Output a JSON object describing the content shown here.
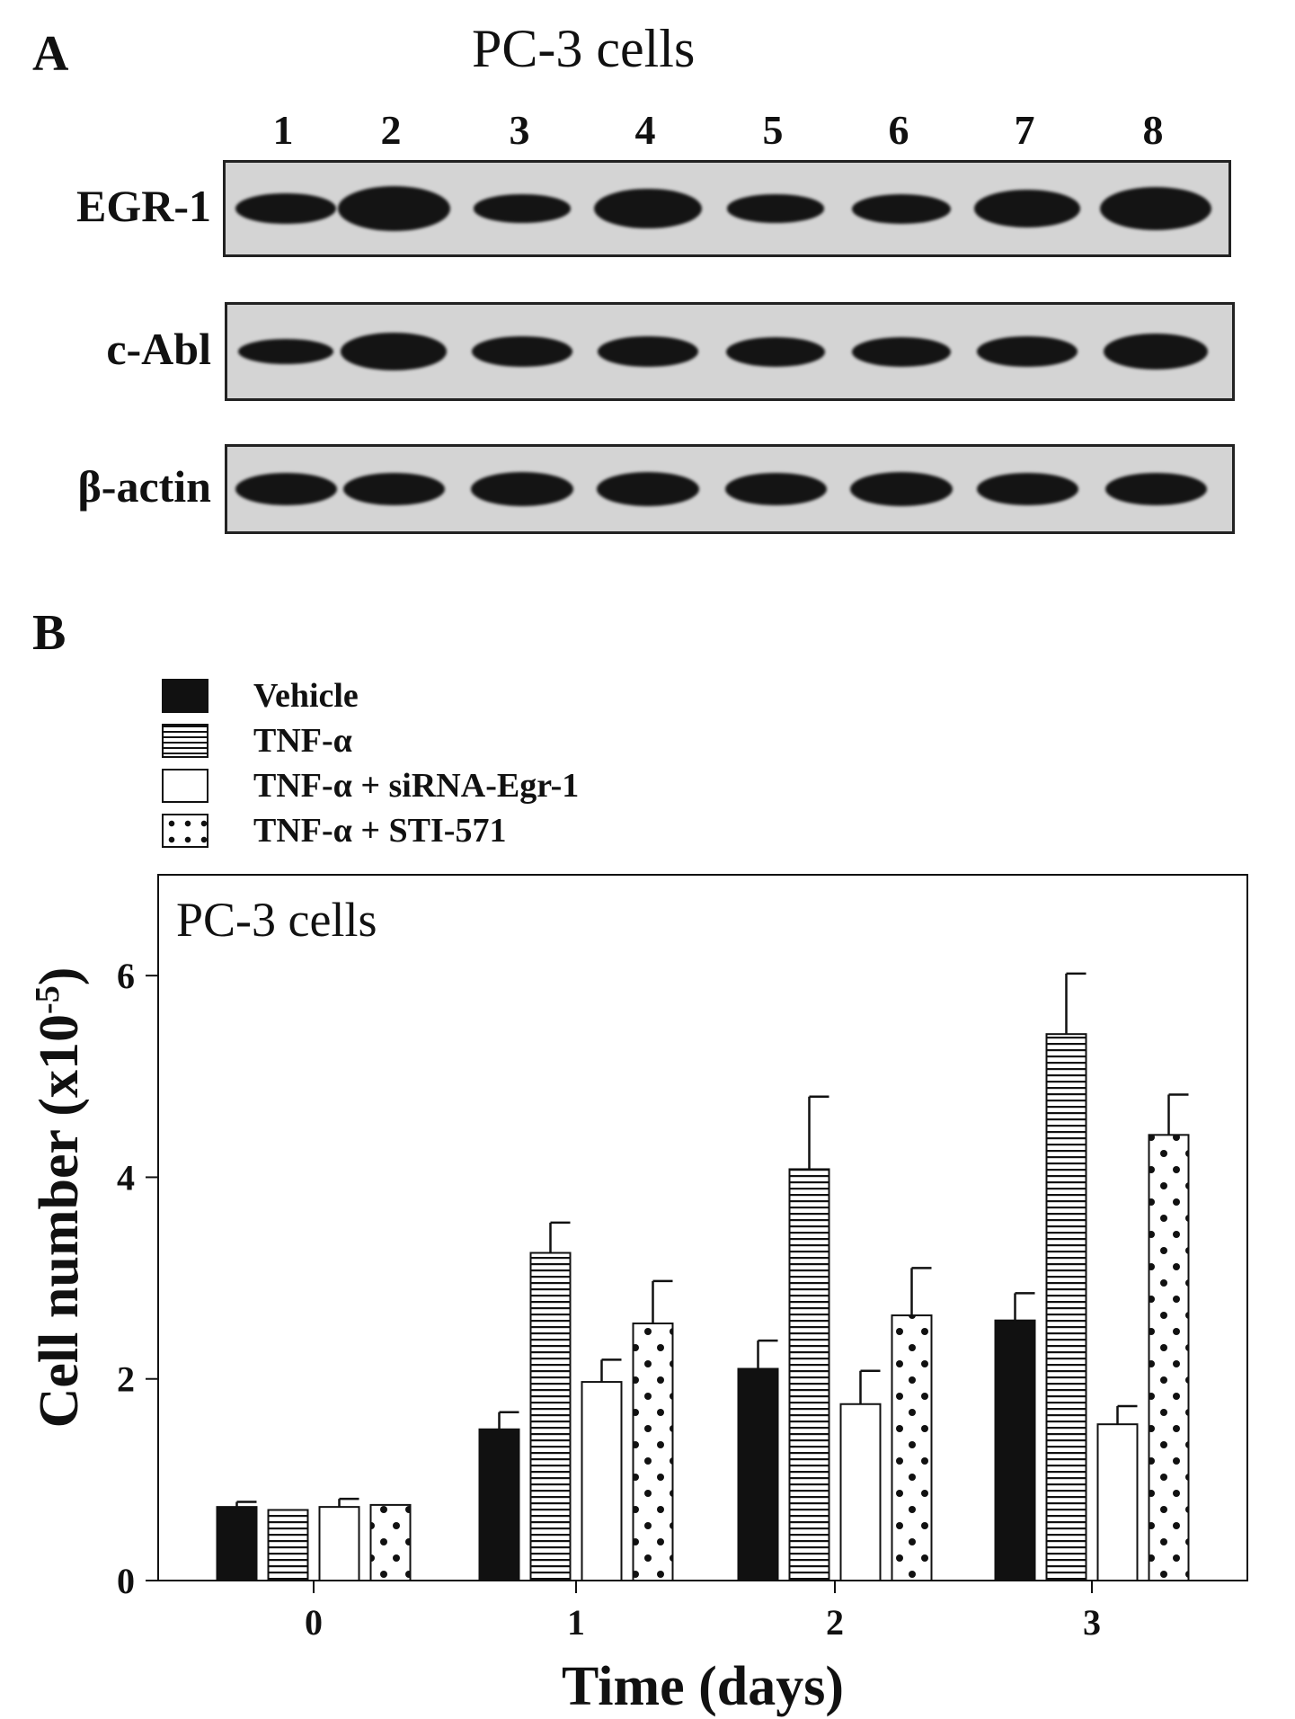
{
  "panel_a": {
    "letter": "A",
    "title": "PC-3 cells",
    "lanes": [
      "1",
      "2",
      "3",
      "4",
      "5",
      "6",
      "7",
      "8"
    ],
    "blots": [
      {
        "label": "EGR-1",
        "band_intensity": [
          0.55,
          1.0,
          0.45,
          0.85,
          0.45,
          0.5,
          0.75,
          0.95
        ]
      },
      {
        "label": "c-Abl",
        "band_intensity": [
          0.35,
          0.75,
          0.55,
          0.55,
          0.5,
          0.5,
          0.55,
          0.7
        ]
      },
      {
        "label": "β-actin",
        "band_intensity": [
          0.6,
          0.6,
          0.65,
          0.65,
          0.6,
          0.65,
          0.6,
          0.6
        ]
      }
    ]
  },
  "panel_b": {
    "letter": "B",
    "legend": [
      {
        "label": "Vehicle",
        "pattern": "solid"
      },
      {
        "label": "TNF-α",
        "pattern": "hstripes"
      },
      {
        "label": "TNF-α + siRNA-Egr-1",
        "pattern": "white"
      },
      {
        "label": "TNF-α + STI-571",
        "pattern": "dots"
      }
    ]
  },
  "chart_data": {
    "type": "bar",
    "title": "PC-3 cells",
    "xlabel": "Time (days)",
    "ylabel": "Cell number (x10",
    "ylabel_sup": "-5",
    "ylabel_end": ")",
    "categories": [
      "0",
      "1",
      "2",
      "3"
    ],
    "ylim": [
      0,
      7
    ],
    "yticks": [
      "0",
      "2",
      "4",
      "6"
    ],
    "series": [
      {
        "name": "Vehicle",
        "pattern": "solid",
        "values": [
          0.73,
          1.5,
          2.1,
          2.58
        ],
        "errors": [
          0.05,
          0.17,
          0.28,
          0.27
        ]
      },
      {
        "name": "TNF-α",
        "pattern": "hstripes",
        "values": [
          0.7,
          3.25,
          4.08,
          5.42
        ],
        "errors": [
          0.0,
          0.3,
          0.72,
          0.6
        ]
      },
      {
        "name": "TNF-α + siRNA-Egr-1",
        "pattern": "white",
        "values": [
          0.73,
          1.97,
          1.75,
          1.55
        ],
        "errors": [
          0.08,
          0.22,
          0.33,
          0.18
        ]
      },
      {
        "name": "TNF-α + STI-571",
        "pattern": "dots",
        "values": [
          0.75,
          2.55,
          2.63,
          4.42
        ],
        "errors": [
          0.0,
          0.42,
          0.47,
          0.4
        ]
      }
    ],
    "legend_position": "top-left",
    "grid": false
  }
}
